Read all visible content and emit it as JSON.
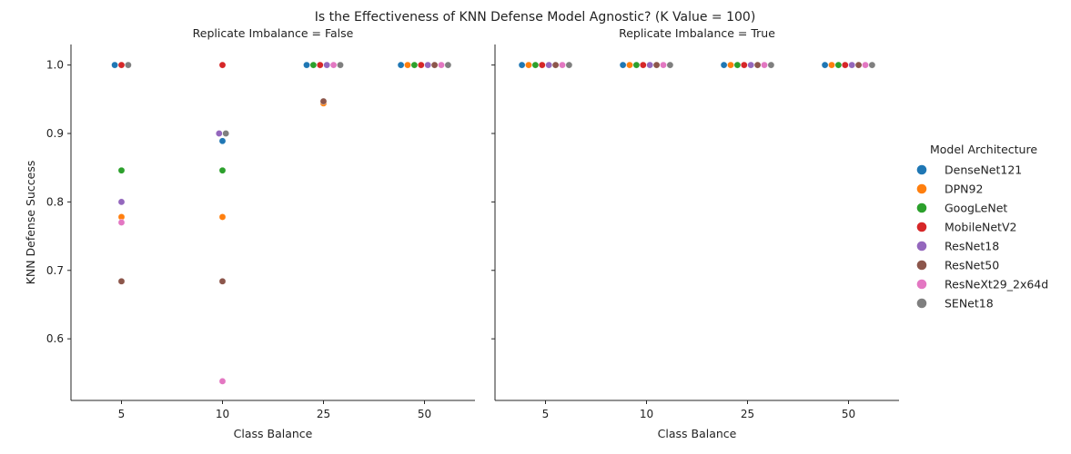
{
  "chart_data": {
    "type": "scatter",
    "title": "Is the Effectiveness of KNN Defense Model Agnostic? (K Value = 100)",
    "xlabel": "Class Balance",
    "ylabel": "KNN Defense Success",
    "categories": [
      "5",
      "10",
      "25",
      "50"
    ],
    "yticks": [
      "0.6",
      "0.7",
      "0.8",
      "0.9",
      "1.0"
    ],
    "ylim": [
      0.51,
      1.03
    ],
    "legend": {
      "title": "Model Architecture",
      "placement": "right",
      "entries": [
        {
          "name": "DenseNet121",
          "color": "#1f77b4"
        },
        {
          "name": "DPN92",
          "color": "#ff7f0e"
        },
        {
          "name": "GoogLeNet",
          "color": "#2ca02c"
        },
        {
          "name": "MobileNetV2",
          "color": "#d62728"
        },
        {
          "name": "ResNet18",
          "color": "#9467bd"
        },
        {
          "name": "ResNet50",
          "color": "#8c564b"
        },
        {
          "name": "ResNeXt29_2x64d",
          "color": "#e377c2"
        },
        {
          "name": "SENet18",
          "color": "#7f7f7f"
        }
      ]
    },
    "panels": [
      {
        "title": "Replicate Imbalance = False",
        "points": [
          {
            "x": "5",
            "model": "DenseNet121",
            "y": 1.0
          },
          {
            "x": "5",
            "model": "DPN92",
            "y": 0.778
          },
          {
            "x": "5",
            "model": "GoogLeNet",
            "y": 0.846
          },
          {
            "x": "5",
            "model": "MobileNetV2",
            "y": 1.0
          },
          {
            "x": "5",
            "model": "ResNet18",
            "y": 0.8
          },
          {
            "x": "5",
            "model": "ResNet50",
            "y": 0.684
          },
          {
            "x": "5",
            "model": "ResNeXt29_2x64d",
            "y": 0.77
          },
          {
            "x": "5",
            "model": "SENet18",
            "y": 1.0
          },
          {
            "x": "10",
            "model": "DenseNet121",
            "y": 0.889
          },
          {
            "x": "10",
            "model": "DPN92",
            "y": 0.778
          },
          {
            "x": "10",
            "model": "GoogLeNet",
            "y": 0.846
          },
          {
            "x": "10",
            "model": "MobileNetV2",
            "y": 1.0
          },
          {
            "x": "10",
            "model": "ResNet18",
            "y": 0.9
          },
          {
            "x": "10",
            "model": "ResNet50",
            "y": 0.684
          },
          {
            "x": "10",
            "model": "ResNeXt29_2x64d",
            "y": 0.538
          },
          {
            "x": "10",
            "model": "SENet18",
            "y": 0.9
          },
          {
            "x": "25",
            "model": "DenseNet121",
            "y": 1.0
          },
          {
            "x": "25",
            "model": "DPN92",
            "y": 0.944
          },
          {
            "x": "25",
            "model": "GoogLeNet",
            "y": 1.0
          },
          {
            "x": "25",
            "model": "MobileNetV2",
            "y": 1.0
          },
          {
            "x": "25",
            "model": "ResNet18",
            "y": 1.0
          },
          {
            "x": "25",
            "model": "ResNet50",
            "y": 0.947
          },
          {
            "x": "25",
            "model": "ResNeXt29_2x64d",
            "y": 1.0
          },
          {
            "x": "25",
            "model": "SENet18",
            "y": 1.0
          },
          {
            "x": "50",
            "model": "DenseNet121",
            "y": 1.0
          },
          {
            "x": "50",
            "model": "DPN92",
            "y": 1.0
          },
          {
            "x": "50",
            "model": "GoogLeNet",
            "y": 1.0
          },
          {
            "x": "50",
            "model": "MobileNetV2",
            "y": 1.0
          },
          {
            "x": "50",
            "model": "ResNet18",
            "y": 1.0
          },
          {
            "x": "50",
            "model": "ResNet50",
            "y": 1.0
          },
          {
            "x": "50",
            "model": "ResNeXt29_2x64d",
            "y": 1.0
          },
          {
            "x": "50",
            "model": "SENet18",
            "y": 1.0
          }
        ]
      },
      {
        "title": "Replicate Imbalance = True",
        "points": [
          {
            "x": "5",
            "model": "DenseNet121",
            "y": 1.0
          },
          {
            "x": "5",
            "model": "DPN92",
            "y": 1.0
          },
          {
            "x": "5",
            "model": "GoogLeNet",
            "y": 1.0
          },
          {
            "x": "5",
            "model": "MobileNetV2",
            "y": 1.0
          },
          {
            "x": "5",
            "model": "ResNet18",
            "y": 1.0
          },
          {
            "x": "5",
            "model": "ResNet50",
            "y": 1.0
          },
          {
            "x": "5",
            "model": "ResNeXt29_2x64d",
            "y": 1.0
          },
          {
            "x": "5",
            "model": "SENet18",
            "y": 1.0
          },
          {
            "x": "10",
            "model": "DenseNet121",
            "y": 1.0
          },
          {
            "x": "10",
            "model": "DPN92",
            "y": 1.0
          },
          {
            "x": "10",
            "model": "GoogLeNet",
            "y": 1.0
          },
          {
            "x": "10",
            "model": "MobileNetV2",
            "y": 1.0
          },
          {
            "x": "10",
            "model": "ResNet18",
            "y": 1.0
          },
          {
            "x": "10",
            "model": "ResNet50",
            "y": 1.0
          },
          {
            "x": "10",
            "model": "ResNeXt29_2x64d",
            "y": 1.0
          },
          {
            "x": "10",
            "model": "SENet18",
            "y": 1.0
          },
          {
            "x": "25",
            "model": "DenseNet121",
            "y": 1.0
          },
          {
            "x": "25",
            "model": "DPN92",
            "y": 1.0
          },
          {
            "x": "25",
            "model": "GoogLeNet",
            "y": 1.0
          },
          {
            "x": "25",
            "model": "MobileNetV2",
            "y": 1.0
          },
          {
            "x": "25",
            "model": "ResNet18",
            "y": 1.0
          },
          {
            "x": "25",
            "model": "ResNet50",
            "y": 1.0
          },
          {
            "x": "25",
            "model": "ResNeXt29_2x64d",
            "y": 1.0
          },
          {
            "x": "25",
            "model": "SENet18",
            "y": 1.0
          },
          {
            "x": "50",
            "model": "DenseNet121",
            "y": 1.0
          },
          {
            "x": "50",
            "model": "DPN92",
            "y": 1.0
          },
          {
            "x": "50",
            "model": "GoogLeNet",
            "y": 1.0
          },
          {
            "x": "50",
            "model": "MobileNetV2",
            "y": 1.0
          },
          {
            "x": "50",
            "model": "ResNet18",
            "y": 1.0
          },
          {
            "x": "50",
            "model": "ResNet50",
            "y": 1.0
          },
          {
            "x": "50",
            "model": "ResNeXt29_2x64d",
            "y": 1.0
          },
          {
            "x": "50",
            "model": "SENet18",
            "y": 1.0
          }
        ]
      }
    ]
  }
}
